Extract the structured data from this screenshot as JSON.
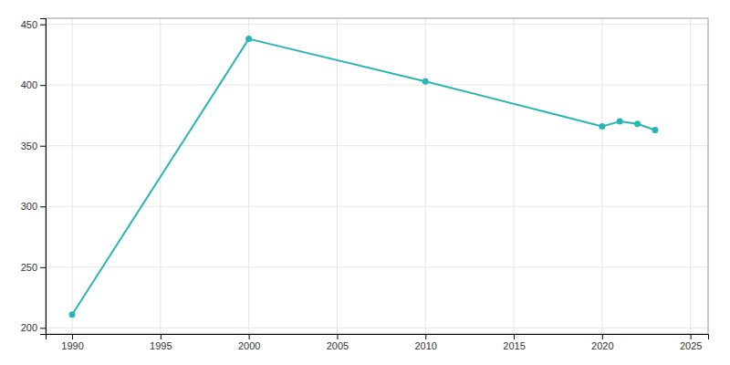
{
  "chart_data": {
    "type": "line",
    "x": [
      1990,
      2000,
      2010,
      2020,
      2021,
      2022,
      2023
    ],
    "values": [
      211,
      438,
      403,
      366,
      370,
      368,
      363
    ],
    "color": "#2ab5b5",
    "marker": "circle",
    "xlim": [
      1988.5,
      2026
    ],
    "ylim": [
      195,
      455
    ],
    "xticks": [
      1990,
      1995,
      2000,
      2005,
      2010,
      2015,
      2020,
      2025
    ],
    "yticks": [
      200,
      250,
      300,
      350,
      400,
      450
    ],
    "grid": true
  }
}
